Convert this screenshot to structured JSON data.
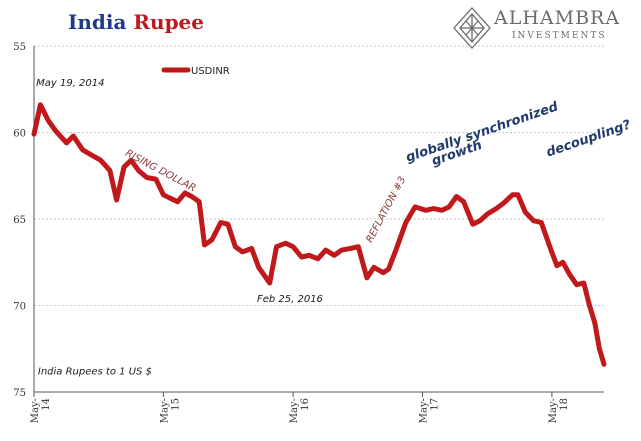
{
  "header": {
    "title_part1": "India",
    "title_part2": "Rupee",
    "title_color1": "#1f3a8a",
    "title_color2": "#c0181b"
  },
  "logo": {
    "name": "ALHAMBRA",
    "sub": "INVESTMENTS",
    "icon": "diamond-lattice-icon",
    "color": "#6b6b6b"
  },
  "chart_data": {
    "type": "line",
    "title": "India Rupee",
    "ylabel": "India Rupees to 1 US $",
    "y_inverted": true,
    "ylim": [
      55,
      75
    ],
    "yticks": [
      55,
      60,
      65,
      70,
      75
    ],
    "xlim": [
      "2014-05-01",
      "2018-09-25"
    ],
    "xticks": [
      {
        "date": "2014-05-01",
        "label": [
          "May-",
          "14"
        ]
      },
      {
        "date": "2015-05-01",
        "label": [
          "May-",
          "15"
        ]
      },
      {
        "date": "2016-05-01",
        "label": [
          "May-",
          "16"
        ]
      },
      {
        "date": "2017-05-01",
        "label": [
          "May-",
          "17"
        ]
      },
      {
        "date": "2018-05-01",
        "label": [
          "May-",
          "18"
        ]
      }
    ],
    "grid": true,
    "legend_position": "top-left",
    "series": [
      {
        "name": "USDINR",
        "color": "#c0181b",
        "points": [
          [
            "2014-05-01",
            60.1
          ],
          [
            "2014-05-19",
            58.4
          ],
          [
            "2014-06-10",
            59.3
          ],
          [
            "2014-07-01",
            59.9
          ],
          [
            "2014-08-01",
            60.6
          ],
          [
            "2014-08-20",
            60.2
          ],
          [
            "2014-09-15",
            61.0
          ],
          [
            "2014-10-10",
            61.3
          ],
          [
            "2014-11-05",
            61.6
          ],
          [
            "2014-12-01",
            62.2
          ],
          [
            "2014-12-20",
            63.9
          ],
          [
            "2015-01-10",
            62.0
          ],
          [
            "2015-01-30",
            61.6
          ],
          [
            "2015-02-20",
            62.2
          ],
          [
            "2015-03-15",
            62.6
          ],
          [
            "2015-04-10",
            62.7
          ],
          [
            "2015-05-01",
            63.6
          ],
          [
            "2015-05-20",
            63.8
          ],
          [
            "2015-06-10",
            64.0
          ],
          [
            "2015-07-01",
            63.5
          ],
          [
            "2015-07-20",
            63.7
          ],
          [
            "2015-08-10",
            64.0
          ],
          [
            "2015-08-25",
            66.5
          ],
          [
            "2015-09-15",
            66.2
          ],
          [
            "2015-10-10",
            65.2
          ],
          [
            "2015-10-30",
            65.3
          ],
          [
            "2015-11-20",
            66.6
          ],
          [
            "2015-12-10",
            66.9
          ],
          [
            "2016-01-05",
            66.7
          ],
          [
            "2016-01-25",
            67.8
          ],
          [
            "2016-02-25",
            68.7
          ],
          [
            "2016-03-15",
            66.6
          ],
          [
            "2016-04-10",
            66.4
          ],
          [
            "2016-05-01",
            66.6
          ],
          [
            "2016-05-25",
            67.2
          ],
          [
            "2016-06-15",
            67.1
          ],
          [
            "2016-07-10",
            67.3
          ],
          [
            "2016-08-01",
            66.8
          ],
          [
            "2016-08-25",
            67.1
          ],
          [
            "2016-09-15",
            66.8
          ],
          [
            "2016-10-10",
            66.7
          ],
          [
            "2016-11-01",
            66.6
          ],
          [
            "2016-11-25",
            68.4
          ],
          [
            "2016-12-15",
            67.8
          ],
          [
            "2017-01-10",
            68.1
          ],
          [
            "2017-01-25",
            67.9
          ],
          [
            "2017-02-15",
            66.8
          ],
          [
            "2017-03-15",
            65.2
          ],
          [
            "2017-04-10",
            64.3
          ],
          [
            "2017-05-10",
            64.5
          ],
          [
            "2017-06-01",
            64.4
          ],
          [
            "2017-06-25",
            64.5
          ],
          [
            "2017-07-15",
            64.3
          ],
          [
            "2017-08-05",
            63.7
          ],
          [
            "2017-08-25",
            64.0
          ],
          [
            "2017-09-20",
            65.3
          ],
          [
            "2017-10-10",
            65.1
          ],
          [
            "2017-11-01",
            64.7
          ],
          [
            "2017-11-25",
            64.4
          ],
          [
            "2017-12-15",
            64.1
          ],
          [
            "2018-01-10",
            63.6
          ],
          [
            "2018-01-25",
            63.6
          ],
          [
            "2018-02-15",
            64.6
          ],
          [
            "2018-03-10",
            65.1
          ],
          [
            "2018-04-01",
            65.2
          ],
          [
            "2018-04-25",
            66.6
          ],
          [
            "2018-05-15",
            67.7
          ],
          [
            "2018-06-01",
            67.5
          ],
          [
            "2018-06-20",
            68.2
          ],
          [
            "2018-07-10",
            68.8
          ],
          [
            "2018-07-30",
            68.7
          ],
          [
            "2018-08-15",
            70.0
          ],
          [
            "2018-08-30",
            71.0
          ],
          [
            "2018-09-12",
            72.5
          ],
          [
            "2018-09-25",
            73.4
          ]
        ]
      }
    ],
    "annotations": [
      {
        "text": "May 19, 2014",
        "date": "2014-05-07",
        "y": 57.3,
        "color": "#1a1a1a",
        "size": 10,
        "angle": 0,
        "bold": false
      },
      {
        "text": "RISING DOLLAR",
        "date": "2015-01-12",
        "y": 61.3,
        "color": "#8c3a3a",
        "size": 10,
        "angle": 28,
        "bold": false
      },
      {
        "text": "Feb 25, 2016",
        "date": "2016-01-20",
        "y": 69.8,
        "color": "#1a1a1a",
        "size": 10,
        "angle": 0,
        "bold": false
      },
      {
        "text": "REFLATION #3",
        "date": "2016-12-08",
        "y": 66.4,
        "color": "#8c3a3a",
        "size": 10,
        "angle": -62,
        "bold": false
      },
      {
        "text": "globally synchronized",
        "date": "2017-03-20",
        "y": 61.7,
        "color": "#1f3a6b",
        "size": 13,
        "angle": -19,
        "bold": true
      },
      {
        "text": "growth",
        "date": "2017-06-01",
        "y": 61.9,
        "color": "#1f3a6b",
        "size": 13,
        "angle": -19,
        "bold": true
      },
      {
        "text": "decoupling?",
        "date": "2018-04-20",
        "y": 61.4,
        "color": "#1f3a6b",
        "size": 13,
        "angle": -19,
        "bold": true
      },
      {
        "text": "India Rupees to 1 US $",
        "date": "2014-05-12",
        "y": 74.0,
        "color": "#1a1a1a",
        "size": 10,
        "angle": 0,
        "bold": false
      }
    ]
  }
}
